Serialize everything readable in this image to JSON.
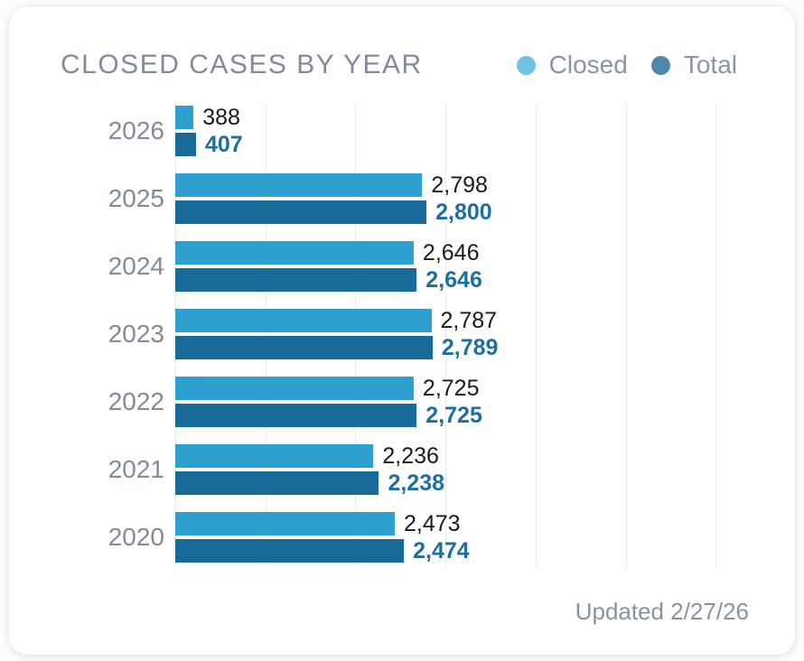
{
  "card": {
    "title": "CLOSED CASES BY YEAR",
    "updated_text": "Updated 2/27/26"
  },
  "legend": {
    "items": [
      {
        "label": "Closed",
        "color": "#6ec1e4"
      },
      {
        "label": "Total",
        "color": "#4e89ac"
      }
    ]
  },
  "colors": {
    "closed_bar": "#2da0cf",
    "total_bar": "#186b99",
    "closed_value_text": "#1a1a1a",
    "total_value_text": "#1e6f9f",
    "title_text": "#828b98",
    "muted_text": "#8a94a4",
    "gridline": "#e9ebee",
    "card_border": "#e9ebef"
  },
  "chart_data": {
    "type": "bar",
    "orientation": "horizontal",
    "title": "CLOSED CASES BY YEAR",
    "categories": [
      "2026",
      "2025",
      "2024",
      "2023",
      "2022",
      "2021",
      "2020"
    ],
    "series": [
      {
        "name": "Closed",
        "values": [
          388,
          2798,
          2646,
          2787,
          2725,
          2236,
          2473
        ],
        "labels": [
          "388",
          "2,798",
          "2,646",
          "2,787",
          "2,725",
          "2,236",
          "2,473"
        ]
      },
      {
        "name": "Total",
        "values": [
          407,
          2800,
          2646,
          2789,
          2725,
          2238,
          2474
        ],
        "labels": [
          "407",
          "2,800",
          "2,646",
          "2,789",
          "2,725",
          "2,238",
          "2,474"
        ]
      }
    ],
    "legend_position": "top-right",
    "grid": "vertical-lines-unlabeled",
    "value_labels": "outside-end",
    "gridline_pct": [
      0,
      14.8,
      29.5,
      44.3,
      59.1,
      73.9,
      88.6
    ],
    "bar_width_pct": {
      "closed": [
        3.0,
        40.5,
        39.1,
        42.0,
        39.1,
        32.5,
        36.0
      ],
      "total": [
        3.4,
        41.2,
        39.6,
        42.2,
        39.6,
        33.4,
        37.5
      ]
    },
    "updated": "Updated 2/27/26"
  }
}
